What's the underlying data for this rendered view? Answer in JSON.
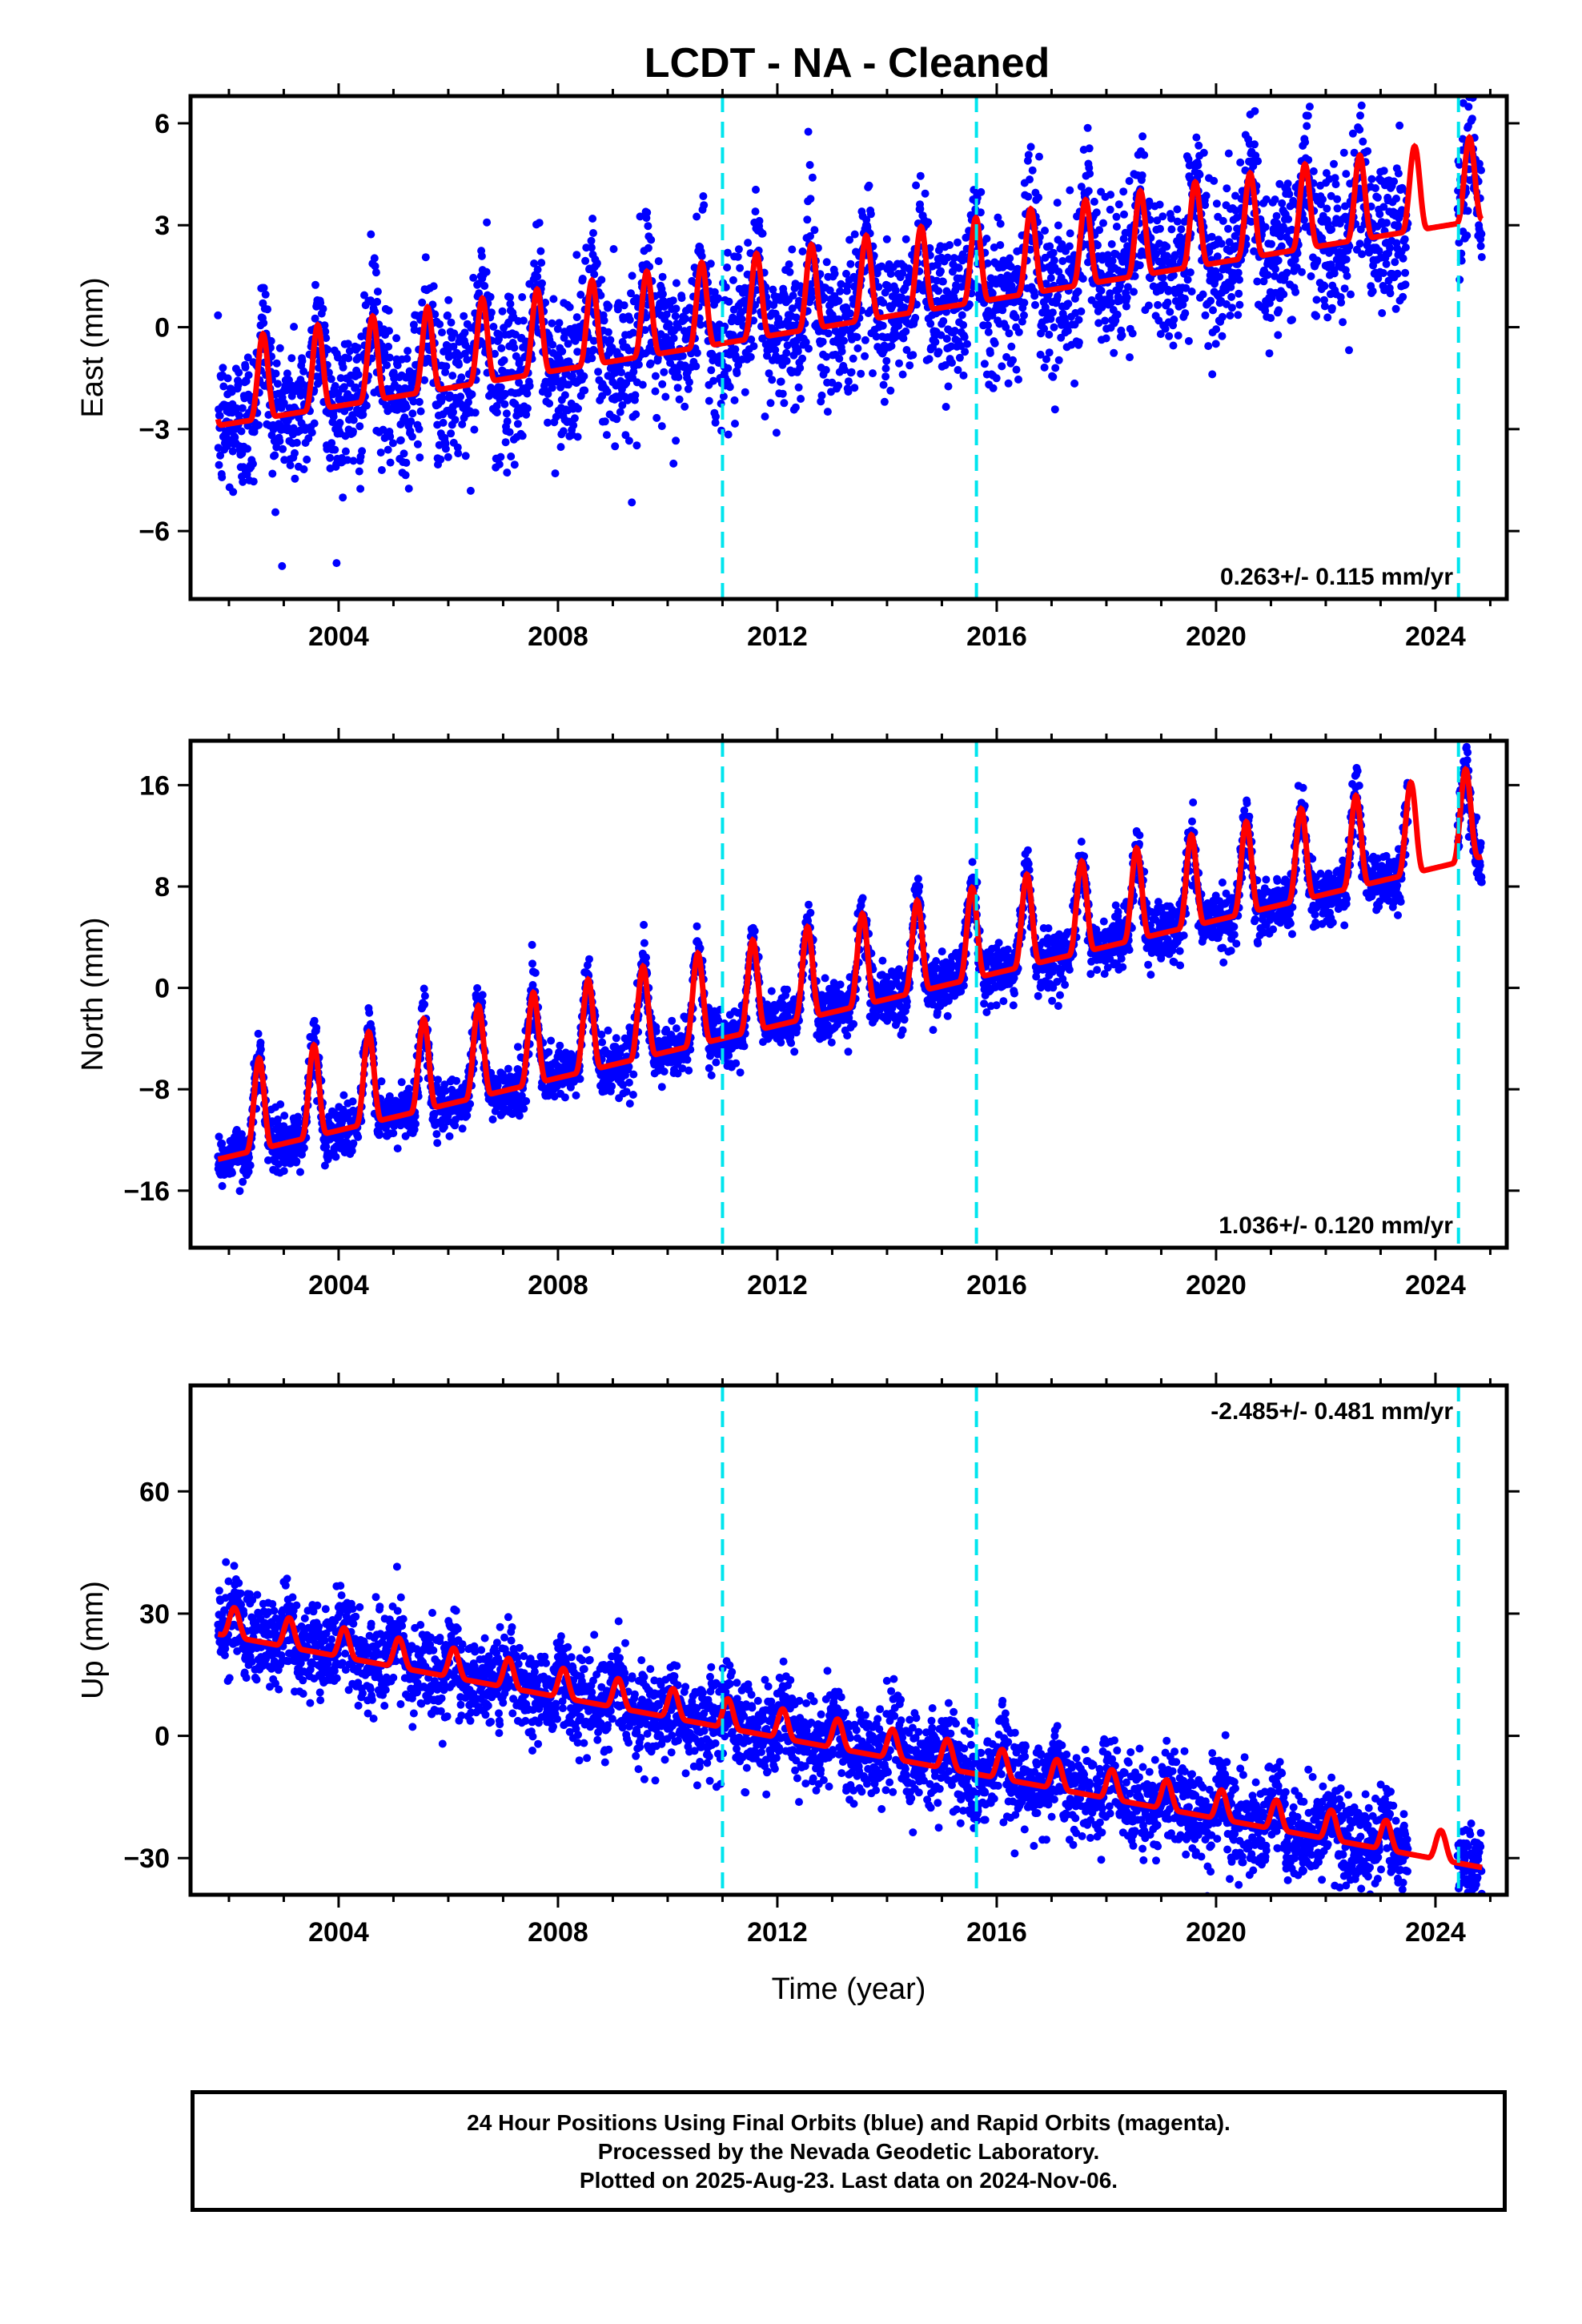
{
  "title": "LCDT  - NA - Cleaned",
  "footer": {
    "line1": "24 Hour Positions Using Final Orbits (blue) and Rapid Orbits (magenta).",
    "line2": "Processed by the Nevada Geodetic Laboratory.",
    "line3": "Plotted on 2025-Aug-23. Last data on 2024-Nov-06."
  },
  "colors": {
    "observations": "#0000ff",
    "model": "#ff0000",
    "offsets": "#00e5ee",
    "frame": "#000000"
  },
  "chart_data": [
    {
      "type": "scatter",
      "ylabel": "East (mm)",
      "xlabel": "",
      "xlim": [
        2001.3,
        2025.3
      ],
      "ylim": [
        -8.0,
        6.8
      ],
      "xticks": [
        2004,
        2008,
        2012,
        2016,
        2020,
        2024
      ],
      "xtick_labels": [
        "2004",
        "2008",
        "2012",
        "2016",
        "2020",
        "2024"
      ],
      "yticks": [
        -6,
        -3,
        0,
        3,
        6
      ],
      "ytick_labels": [
        "−6",
        "−3",
        "0",
        "3",
        "6"
      ],
      "rate_label": "0.263+/- 0.115 mm/yr",
      "rate_position": "bottom-right",
      "offset_epochs": [
        2011.0,
        2015.63,
        2024.42
      ],
      "data_start": 2001.8,
      "data_end": 2024.85,
      "data_gap": [
        2023.5,
        2024.4
      ],
      "model": {
        "intercept": -2.2,
        "rate": 0.263,
        "annual_amplitude": 1.55,
        "peak_phase": 0.62,
        "noise_sigma": 1.1
      }
    },
    {
      "type": "scatter",
      "ylabel": "North (mm)",
      "xlabel": "",
      "xlim": [
        2001.3,
        2025.3
      ],
      "ylim": [
        -20.5,
        19.5
      ],
      "xticks": [
        2004,
        2008,
        2012,
        2016,
        2020,
        2024
      ],
      "xtick_labels": [
        "2004",
        "2008",
        "2012",
        "2016",
        "2020",
        "2024"
      ],
      "yticks": [
        -16,
        -8,
        0,
        8,
        16
      ],
      "ytick_labels": [
        "−16",
        "−8",
        "0",
        "8",
        "16"
      ],
      "rate_label": "1.036+/- 0.120 mm/yr",
      "rate_position": "bottom-right",
      "offset_epochs": [
        2011.0,
        2015.63,
        2024.42
      ],
      "data_start": 2001.8,
      "data_end": 2024.85,
      "data_gap": [
        2023.5,
        2024.4
      ],
      "model": {
        "intercept": -11.5,
        "rate": 1.036,
        "annual_amplitude": 4.5,
        "peak_phase": 0.55,
        "noise_sigma": 1.1
      }
    },
    {
      "type": "scatter",
      "ylabel": "Up (mm)",
      "xlabel": "Time (year)",
      "xlim": [
        2001.3,
        2025.3
      ],
      "ylim": [
        -39,
        86
      ],
      "xticks": [
        2004,
        2008,
        2012,
        2016,
        2020,
        2024
      ],
      "xtick_labels": [
        "2004",
        "2008",
        "2012",
        "2016",
        "2020",
        "2024"
      ],
      "yticks": [
        -30,
        0,
        30,
        60
      ],
      "ytick_labels": [
        "−30",
        "0",
        "30",
        "60"
      ],
      "rate_label": "-2.485+/- 0.481 mm/yr",
      "rate_position": "top-right",
      "offset_epochs": [
        2011.0,
        2015.63,
        2024.42
      ],
      "data_start": 2001.8,
      "data_end": 2024.85,
      "data_gap": [
        2023.5,
        2024.4
      ],
      "model": {
        "intercept": 27,
        "rate": -2.485,
        "annual_amplitude": 4.5,
        "peak_phase": 0.1,
        "noise_sigma": 5.5
      }
    }
  ]
}
